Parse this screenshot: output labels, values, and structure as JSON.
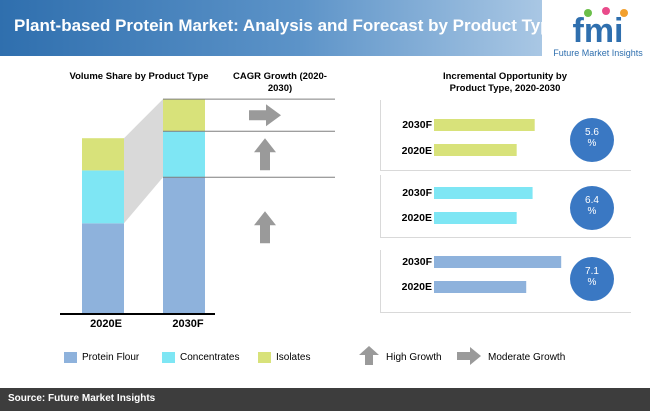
{
  "title": "Plant-based Protein Market: Analysis and Forecast by Product Type",
  "logo": {
    "letters": "fmi",
    "text": "Future Market Insights"
  },
  "colors": {
    "protein_flour": "#8eb2dc",
    "concentrates": "#7ee6f4",
    "isolates": "#d8e27a",
    "bubble": "#3a78c3",
    "arrow": "#9a9a9a"
  },
  "chart_data": [
    {
      "type": "bar",
      "title": "Volume Share by Product Type",
      "categories": [
        "2020E",
        "2030F"
      ],
      "stacked": true,
      "series": [
        {
          "name": "Protein Flour",
          "values": [
            39,
            59
          ]
        },
        {
          "name": "Concentrates",
          "values": [
            23,
            20
          ]
        },
        {
          "name": "Isolates",
          "values": [
            14,
            14
          ]
        }
      ]
    },
    {
      "type": "table",
      "title": "CAGR Growth (2020-2030)",
      "rows": [
        {
          "segment": "Isolates",
          "growth": "Moderate Growth",
          "icon": "right-arrow-icon"
        },
        {
          "segment": "Concentrates",
          "growth": "High Growth",
          "icon": "up-arrow-icon"
        },
        {
          "segment": "Protein Flour",
          "growth": "High Growth",
          "icon": "up-arrow-icon"
        }
      ]
    },
    {
      "type": "bar",
      "title": "Incremental Opportunity by Product Type, 2020-2030",
      "orientation": "horizontal",
      "groups": [
        {
          "segment": "Isolates",
          "categories": [
            "2030F",
            "2020E"
          ],
          "values": [
            95,
            78
          ],
          "cagr": "5.6 %"
        },
        {
          "segment": "Concentrates",
          "categories": [
            "2030F",
            "2020E"
          ],
          "values": [
            93,
            78
          ],
          "cagr": "6.4 %"
        },
        {
          "segment": "Protein Flour",
          "categories": [
            "2030F",
            "2020E"
          ],
          "values": [
            120,
            87
          ],
          "cagr": "7.1 %"
        }
      ]
    }
  ],
  "legend": {
    "items": [
      "Protein Flour",
      "Concentrates",
      "Isolates"
    ],
    "arrows": [
      "High Growth",
      "Moderate Growth"
    ]
  },
  "source": "Source: Future Market Insights"
}
